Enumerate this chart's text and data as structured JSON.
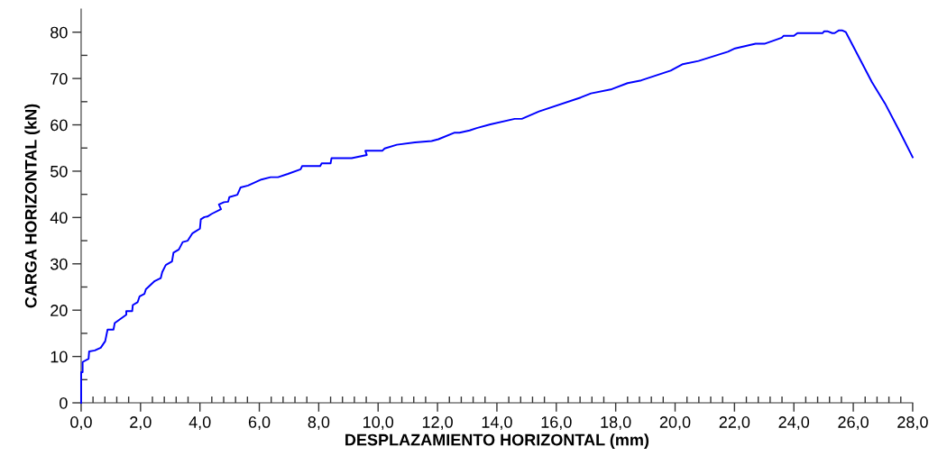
{
  "chart_data": {
    "type": "line",
    "xlabel": "DESPLAZAMIENTO HORIZONTAL (mm)",
    "ylabel": "CARGA HORIZONTAL (kN)",
    "xlim": [
      0,
      28
    ],
    "ylim": [
      0,
      85
    ],
    "xticks": [
      {
        "value": 0,
        "label": "0,0"
      },
      {
        "value": 0.4,
        "label": null
      },
      {
        "value": 0.8,
        "label": null
      },
      {
        "value": 1.2,
        "label": null
      },
      {
        "value": 1.6,
        "label": null
      },
      {
        "value": 2,
        "label": "2,0"
      },
      {
        "value": 2.4,
        "label": null
      },
      {
        "value": 2.8,
        "label": null
      },
      {
        "value": 3.2,
        "label": null
      },
      {
        "value": 3.6,
        "label": null
      },
      {
        "value": 4,
        "label": "4,0"
      },
      {
        "value": 4.4,
        "label": null
      },
      {
        "value": 4.8,
        "label": null
      },
      {
        "value": 5.2,
        "label": null
      },
      {
        "value": 5.6,
        "label": null
      },
      {
        "value": 6,
        "label": "6,0"
      },
      {
        "value": 6.4,
        "label": null
      },
      {
        "value": 6.8,
        "label": null
      },
      {
        "value": 7.2,
        "label": null
      },
      {
        "value": 7.6,
        "label": null
      },
      {
        "value": 8,
        "label": "8,0"
      },
      {
        "value": 8.4,
        "label": null
      },
      {
        "value": 8.8,
        "label": null
      },
      {
        "value": 9.2,
        "label": null
      },
      {
        "value": 9.6,
        "label": null
      },
      {
        "value": 10,
        "label": "10,0"
      },
      {
        "value": 10.4,
        "label": null
      },
      {
        "value": 10.8,
        "label": null
      },
      {
        "value": 11.2,
        "label": null
      },
      {
        "value": 11.6,
        "label": null
      },
      {
        "value": 12,
        "label": "12,0"
      },
      {
        "value": 12.4,
        "label": null
      },
      {
        "value": 12.8,
        "label": null
      },
      {
        "value": 13.2,
        "label": null
      },
      {
        "value": 13.6,
        "label": null
      },
      {
        "value": 14,
        "label": "14,0"
      },
      {
        "value": 14.4,
        "label": null
      },
      {
        "value": 14.8,
        "label": null
      },
      {
        "value": 15.2,
        "label": null
      },
      {
        "value": 15.6,
        "label": null
      },
      {
        "value": 16,
        "label": "16,0"
      },
      {
        "value": 16.4,
        "label": null
      },
      {
        "value": 16.8,
        "label": null
      },
      {
        "value": 17.2,
        "label": null
      },
      {
        "value": 17.6,
        "label": null
      },
      {
        "value": 18,
        "label": "18,0"
      },
      {
        "value": 18.4,
        "label": null
      },
      {
        "value": 18.8,
        "label": null
      },
      {
        "value": 19.2,
        "label": null
      },
      {
        "value": 19.6,
        "label": null
      },
      {
        "value": 20,
        "label": "20,0"
      },
      {
        "value": 20.4,
        "label": null
      },
      {
        "value": 20.8,
        "label": null
      },
      {
        "value": 21.2,
        "label": null
      },
      {
        "value": 21.6,
        "label": null
      },
      {
        "value": 22,
        "label": "22,0"
      },
      {
        "value": 22.4,
        "label": null
      },
      {
        "value": 22.8,
        "label": null
      },
      {
        "value": 23.2,
        "label": null
      },
      {
        "value": 23.6,
        "label": null
      },
      {
        "value": 24,
        "label": "24,0"
      },
      {
        "value": 24.4,
        "label": null
      },
      {
        "value": 24.8,
        "label": null
      },
      {
        "value": 25.2,
        "label": null
      },
      {
        "value": 25.6,
        "label": null
      },
      {
        "value": 26,
        "label": "26,0"
      },
      {
        "value": 26.4,
        "label": null
      },
      {
        "value": 26.8,
        "label": null
      },
      {
        "value": 27.2,
        "label": null
      },
      {
        "value": 27.6,
        "label": null
      },
      {
        "value": 28,
        "label": "28,0"
      }
    ],
    "yticks": [
      0,
      {
        "value": 5,
        "label": null
      },
      10,
      {
        "value": 15,
        "label": null
      },
      20,
      {
        "value": 25,
        "label": null
      },
      30,
      {
        "value": 35,
        "label": null
      },
      40,
      {
        "value": 45,
        "label": null
      },
      50,
      {
        "value": 55,
        "label": null
      },
      60,
      {
        "value": 65,
        "label": null
      },
      70,
      {
        "value": 75,
        "label": null
      },
      80
    ],
    "grid": false,
    "marker": "none",
    "line_style": "solid",
    "series": [
      {
        "color": "#0000ff",
        "x": [
          0,
          0,
          0.05,
          0.05,
          0.25,
          0.27,
          0.46,
          0.66,
          0.81,
          0.89,
          1.09,
          1.13,
          1.32,
          1.52,
          1.52,
          1.72,
          1.74,
          1.9,
          1.97,
          2.13,
          2.18,
          2.48,
          2.68,
          2.73,
          2.83,
          2.86,
          3.06,
          3.11,
          3.29,
          3.42,
          3.59,
          3.75,
          4.0,
          4.03,
          4.15,
          4.25,
          4.4,
          4.71,
          4.64,
          4.81,
          4.95,
          4.99,
          5.26,
          5.37,
          5.62,
          6.07,
          6.38,
          6.63,
          6.96,
          7.39,
          7.44,
          8.05,
          8.1,
          8.4,
          8.43,
          9.11,
          9.62,
          9.57,
          10.14,
          10.22,
          10.63,
          11.24,
          11.8,
          12.03,
          12.56,
          12.74,
          13.08,
          13.32,
          13.78,
          14.6,
          14.84,
          15.42,
          16.82,
          17.17,
          17.87,
          18.4,
          18.86,
          19.85,
          20.26,
          20.79,
          21.78,
          22.02,
          22.71,
          23.01,
          23.59,
          23.65,
          24.0,
          24.12,
          24.97,
          25.02,
          25.13,
          25.29,
          25.37,
          25.52,
          25.62,
          25.75,
          26.63,
          27.07,
          27.56,
          28.0
        ],
        "values": [
          0,
          6.6,
          6.6,
          8.8,
          9.5,
          11.1,
          11.3,
          11.9,
          13.3,
          15.8,
          15.8,
          17.2,
          18.1,
          19.0,
          19.8,
          19.8,
          21.1,
          21.7,
          23.0,
          23.5,
          24.5,
          26.3,
          26.9,
          28.2,
          29.5,
          29.8,
          30.5,
          32.4,
          33.1,
          34.7,
          35.0,
          36.6,
          37.6,
          39.6,
          40.1,
          40.2,
          40.8,
          41.8,
          42.8,
          43.3,
          43.4,
          44.4,
          44.9,
          46.5,
          46.9,
          48.2,
          48.7,
          48.7,
          49.4,
          50.4,
          51.1,
          51.1,
          51.7,
          51.7,
          52.8,
          52.8,
          53.5,
          54.4,
          54.4,
          54.9,
          55.7,
          56.2,
          56.5,
          56.9,
          58.3,
          58.3,
          58.8,
          59.3,
          60.1,
          61.3,
          61.3,
          62.9,
          65.9,
          66.8,
          67.7,
          69.0,
          69.6,
          71.7,
          73.1,
          73.8,
          75.8,
          76.5,
          77.5,
          77.5,
          78.8,
          79.2,
          79.2,
          79.8,
          79.8,
          80.2,
          80.2,
          79.8,
          79.8,
          80.4,
          80.4,
          80.0,
          69.2,
          64.6,
          58.6,
          53.0
        ]
      }
    ]
  }
}
